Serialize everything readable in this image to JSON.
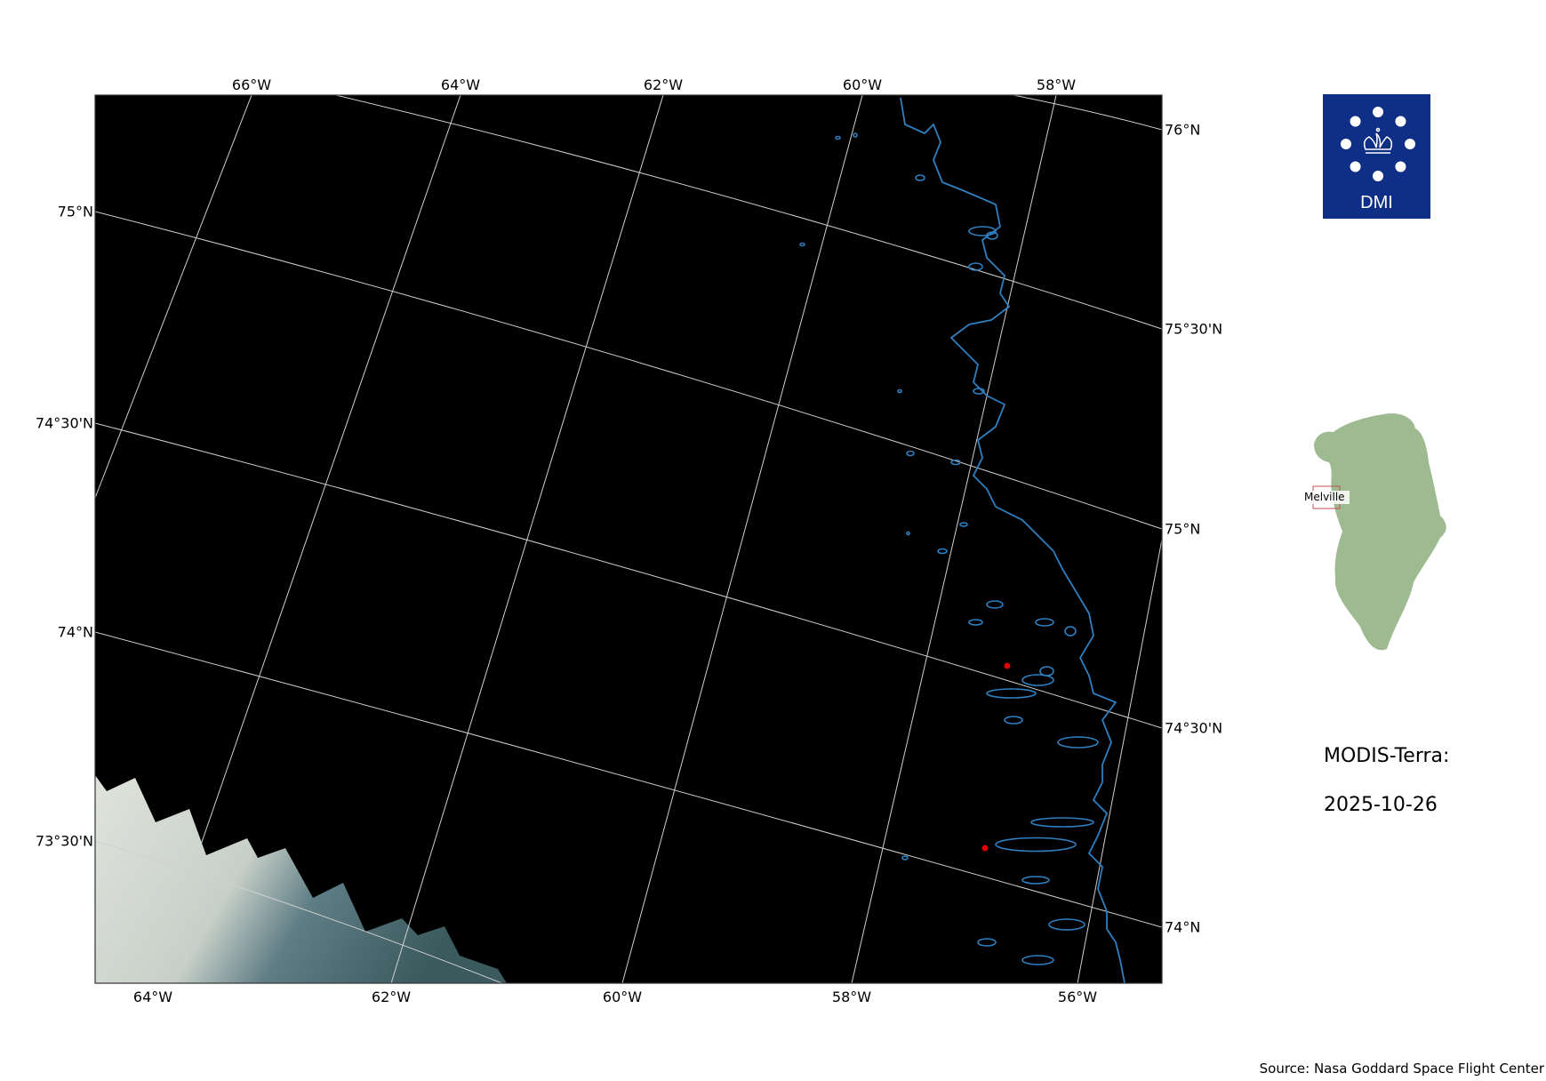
{
  "map": {
    "top_labels": [
      "66°W",
      "64°W",
      "62°W",
      "60°W",
      "58°W"
    ],
    "bottom_labels": [
      "64°W",
      "62°W",
      "60°W",
      "58°W",
      "56°W"
    ],
    "left_labels": [
      "75°N",
      "74°30'N",
      "74°N",
      "73°30'N"
    ],
    "right_labels": [
      "76°N",
      "75°30'N",
      "75°N",
      "74°30'N",
      "74°N"
    ],
    "colors": {
      "background": "#000000",
      "coastline": "#2f7fc0",
      "gridlines": "#d0d0d0",
      "sites": "#e00000",
      "inset_land": "#9dba90",
      "inset_box": "#c0504d"
    },
    "site_markers": 2
  },
  "logo": {
    "text": "DMI",
    "color": "#0f2f86"
  },
  "inset": {
    "label": "Melville"
  },
  "info": {
    "sensor": "MODIS-Terra:",
    "date": "2025-10-26"
  },
  "source": "Source: Nasa Goddard Space Flight Center"
}
